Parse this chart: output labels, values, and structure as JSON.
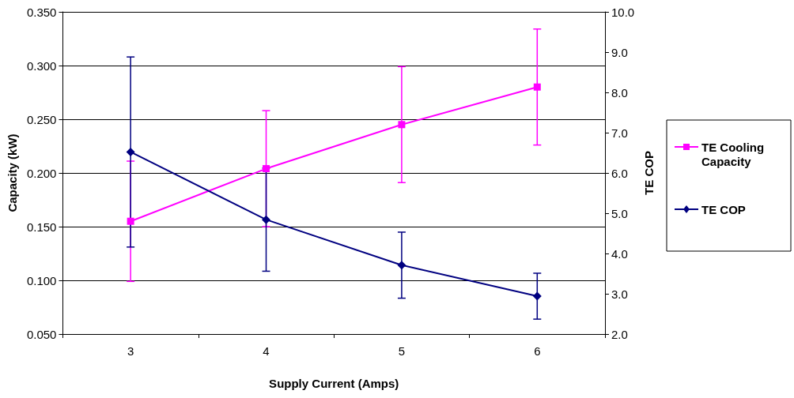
{
  "chart_data": {
    "type": "line",
    "xlabel": "Supply Current (Amps)",
    "ylabel": "Capacity (kW)",
    "y2label": "TE COP",
    "categories": [
      "3",
      "4",
      "5",
      "6"
    ],
    "series": [
      {
        "name": "TE Cooling Capacity",
        "color": "#ff00ff",
        "marker": "square",
        "values": [
          0.155,
          0.204,
          0.245,
          0.28
        ],
        "errors": [
          0.056,
          0.054,
          0.054,
          0.054
        ]
      },
      {
        "name": "TE COP",
        "color": "#000080",
        "marker": "diamond",
        "axis": "y2",
        "values": [
          6.52,
          4.84,
          3.71,
          2.94
        ],
        "errors": [
          2.36,
          1.28,
          0.82,
          0.57
        ]
      }
    ],
    "ylim": [
      0.05,
      0.35
    ],
    "yticks": [
      {
        "value": 0.05,
        "label": "0.050"
      },
      {
        "value": 0.1,
        "label": "0.100"
      },
      {
        "value": 0.15,
        "label": "0.150"
      },
      {
        "value": 0.2,
        "label": "0.200"
      },
      {
        "value": 0.25,
        "label": "0.250"
      },
      {
        "value": 0.3,
        "label": "0.300"
      },
      {
        "value": 0.35,
        "label": "0.350"
      }
    ],
    "y2lim": [
      2,
      10
    ],
    "y2ticks": [
      {
        "value": 2,
        "label": "2.0"
      },
      {
        "value": 3,
        "label": "3.0"
      },
      {
        "value": 4,
        "label": "4.0"
      },
      {
        "value": 5,
        "label": "5.0"
      },
      {
        "value": 6,
        "label": "6.0"
      },
      {
        "value": 7,
        "label": "7.0"
      },
      {
        "value": 8,
        "label": "8.0"
      },
      {
        "value": 9,
        "label": "9.0"
      },
      {
        "value": 10,
        "label": "10.0"
      }
    ],
    "grid": "y",
    "legend": "right",
    "line_style": "solid"
  }
}
